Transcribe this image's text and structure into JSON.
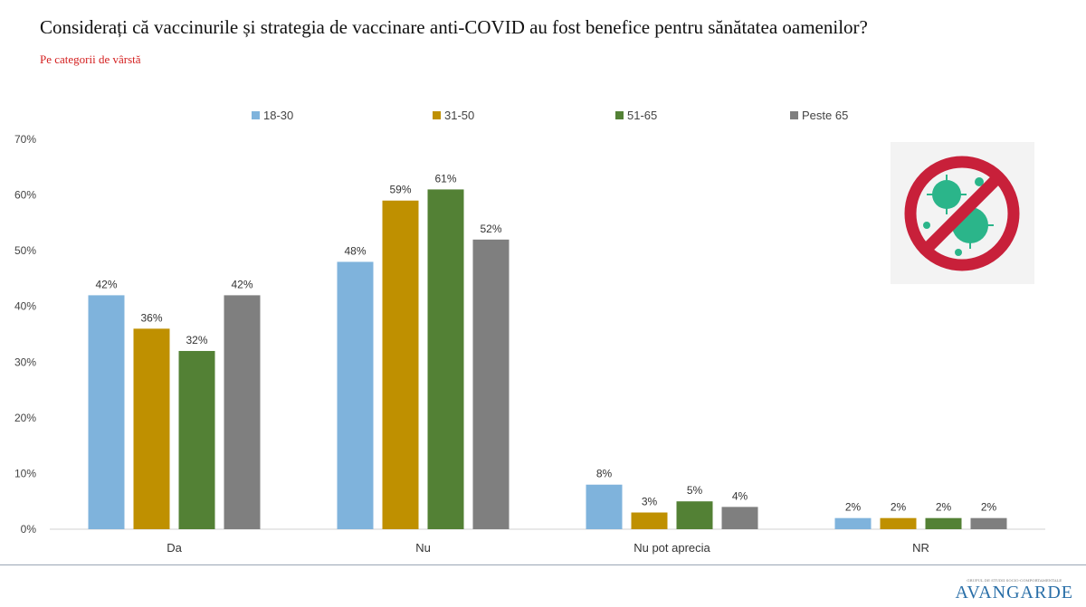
{
  "title": "Considerați că vaccinurile și strategia de vaccinare anti-COVID au fost benefice pentru sănătatea oamenilor?",
  "subtitle": "Pe categorii de vârstă",
  "logo": {
    "name": "AVANGARDE",
    "tagline": "GRUPUL DE STUDII SOCIO-COMPORTAMENTALE"
  },
  "chart_data": {
    "type": "bar",
    "title": "Considerați că vaccinurile și strategia de vaccinare anti-COVID au fost benefice pentru sănătatea oamenilor?",
    "categories": [
      "Da",
      "Nu",
      "Nu pot aprecia",
      "NR"
    ],
    "series": [
      {
        "name": "18-30",
        "color": "#7fb3dc",
        "values": [
          42,
          48,
          8,
          2
        ]
      },
      {
        "name": "31-50",
        "color": "#bf9000",
        "values": [
          36,
          59,
          3,
          2
        ]
      },
      {
        "name": "51-65",
        "color": "#538135",
        "values": [
          32,
          61,
          5,
          2
        ]
      },
      {
        "name": "Peste 65",
        "color": "#7f7f7f",
        "values": [
          42,
          52,
          4,
          2
        ]
      }
    ],
    "ylim": [
      0,
      70
    ],
    "yticks": [
      0,
      10,
      20,
      30,
      40,
      50,
      60,
      70
    ],
    "legend": "top",
    "grid": false,
    "xlabel": "",
    "ylabel": ""
  }
}
